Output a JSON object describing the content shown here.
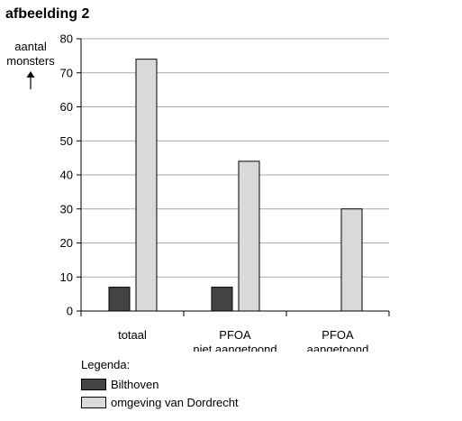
{
  "figure_title": "afbeelding 2",
  "colors": {
    "Bilthoven": "#444444",
    "omgeving van Dordrecht": "#d9d9d9",
    "grid": "#aaaaaa"
  },
  "legend_title": "Legenda:",
  "chart_data": {
    "type": "bar",
    "ylabel": [
      "aantal",
      "monsters"
    ],
    "ylim": [
      0,
      80
    ],
    "yticks": [
      0,
      10,
      20,
      30,
      40,
      50,
      60,
      70,
      80
    ],
    "grid": true,
    "categories": [
      [
        "totaal"
      ],
      [
        "PFOA",
        "niet aangetoond"
      ],
      [
        "PFOA",
        "aangetoond"
      ]
    ],
    "series": [
      {
        "name": "Bilthoven",
        "values": [
          7,
          7,
          0
        ]
      },
      {
        "name": "omgeving van Dordrecht",
        "values": [
          74,
          44,
          30
        ]
      }
    ],
    "legend_position": "bottom-left"
  }
}
